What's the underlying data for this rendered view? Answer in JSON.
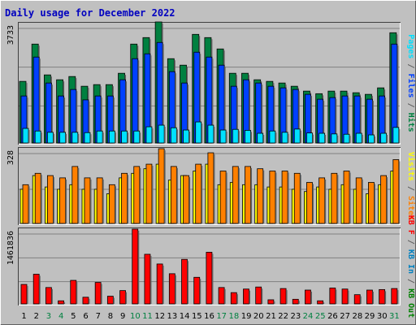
{
  "title": "Daily usage for December 2022",
  "colors": {
    "background": "#c0c0c0",
    "title": "#0000c0",
    "hits": "#008040",
    "files": "#0040ff",
    "pages": "#00e0ff",
    "visits": "#ffff00",
    "sites": "#ff8000",
    "kb_in": "#0080c0",
    "kb_out": "#008000",
    "kb_f": "#ff0000",
    "weekend_day": "#008040"
  },
  "chart_data": [
    {
      "type": "bar",
      "name": "hits-files-pages",
      "ylim_label": "3733",
      "ymax": 3733,
      "side_label": [
        "Pages",
        " / ",
        "Files",
        " / ",
        "Hits"
      ],
      "side_label_colors": [
        "#00e0ff",
        "#606060",
        "#0040ff",
        "#606060",
        "#008040"
      ],
      "categories": [
        "1",
        "2",
        "3",
        "4",
        "5",
        "6",
        "7",
        "8",
        "9",
        "10",
        "11",
        "12",
        "13",
        "14",
        "15",
        "16",
        "17",
        "18",
        "19",
        "20",
        "21",
        "22",
        "23",
        "24",
        "25",
        "26",
        "27",
        "28",
        "29",
        "30",
        "31"
      ],
      "series": [
        {
          "name": "Hits",
          "values": [
            1900,
            3050,
            2100,
            1950,
            2050,
            1750,
            1800,
            1800,
            2150,
            3050,
            3250,
            3733,
            2600,
            2400,
            3350,
            3250,
            2900,
            2150,
            2150,
            1950,
            1900,
            1850,
            1750,
            1600,
            1520,
            1600,
            1600,
            1550,
            1500,
            1700,
            3400
          ]
        },
        {
          "name": "Files",
          "values": [
            1450,
            2650,
            1850,
            1450,
            1650,
            1330,
            1450,
            1450,
            1950,
            2600,
            2750,
            3100,
            2200,
            1850,
            2800,
            2650,
            2400,
            1750,
            1950,
            1850,
            1750,
            1700,
            1650,
            1500,
            1350,
            1400,
            1450,
            1450,
            1350,
            1450,
            3050
          ]
        },
        {
          "name": "Pages",
          "values": [
            450,
            370,
            330,
            330,
            330,
            320,
            370,
            370,
            370,
            370,
            500,
            550,
            470,
            400,
            650,
            550,
            400,
            420,
            390,
            300,
            370,
            330,
            430,
            310,
            300,
            280,
            270,
            300,
            250,
            300,
            480
          ]
        }
      ],
      "weekend_days": [
        3,
        4,
        10,
        11,
        17,
        18,
        24,
        25,
        31
      ]
    },
    {
      "type": "bar",
      "name": "visits-sites",
      "ylim_label": "328",
      "ymax": 328,
      "side_label": [
        "Visits",
        " / ",
        "Sites"
      ],
      "side_label_colors": [
        "#ffff00",
        "#606060",
        "#ff8000"
      ],
      "series": [
        {
          "name": "Visits",
          "values": [
            150,
            210,
            160,
            150,
            170,
            150,
            150,
            130,
            200,
            220,
            240,
            260,
            190,
            210,
            230,
            260,
            170,
            180,
            170,
            170,
            160,
            160,
            150,
            140,
            160,
            150,
            170,
            150,
            130,
            170,
            230
          ]
        },
        {
          "name": "Sites",
          "values": [
            170,
            220,
            210,
            200,
            250,
            200,
            200,
            170,
            220,
            250,
            260,
            328,
            250,
            210,
            260,
            310,
            230,
            250,
            250,
            240,
            230,
            230,
            220,
            180,
            200,
            220,
            230,
            200,
            180,
            210,
            280
          ]
        }
      ]
    },
    {
      "type": "bar",
      "name": "kbytes",
      "ylim_label": "1461836",
      "ymax": 1461836,
      "side_label": [
        "KB F",
        " / ",
        "KB In",
        " / ",
        "KB Out"
      ],
      "side_label_colors": [
        "#ff0000",
        "#606060",
        "#0080c0",
        "#606060",
        "#008000"
      ],
      "series": [
        {
          "name": "KB F",
          "values": [
            380000,
            580000,
            320000,
            60000,
            460000,
            130000,
            420000,
            150000,
            260000,
            1461836,
            970000,
            780000,
            590000,
            870000,
            520000,
            1010000,
            320000,
            220000,
            290000,
            330000,
            80000,
            300000,
            90000,
            270000,
            60000,
            310000,
            290000,
            180000,
            270000,
            280000,
            300000
          ]
        }
      ]
    }
  ]
}
